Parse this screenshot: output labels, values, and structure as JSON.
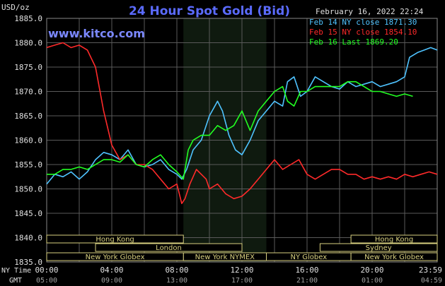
{
  "header": {
    "title": "24 Hour Spot Gold (Bid)",
    "date": "February 16, 2022 22:24",
    "watermark": "www.kitco.com",
    "y_unit": "USD/oz"
  },
  "legend": [
    {
      "label": "Feb 14 NY close 1871.30",
      "color": "#4fc3ff"
    },
    {
      "label": "Feb 15 NY close 1854.10",
      "color": "#ff2a2a"
    },
    {
      "label": "Feb 16 Last 1869.20",
      "color": "#22ff22"
    }
  ],
  "colors": {
    "background": "#000000",
    "grid": "#5a5a5a",
    "title": "#5b6bff",
    "watermark": "#7b88ff",
    "text": "#e0e0e0",
    "session_band": "#0f1a0f",
    "session_label": "#d8d080"
  },
  "time_axis": {
    "ny_time_label": "NY Time",
    "gmt_label": "GMT",
    "ny_ticks": [
      "00:00",
      "04:00",
      "08:00",
      "12:00",
      "16:00",
      "20:00",
      "23:59"
    ],
    "gmt_ticks": [
      "05:00",
      "09:00",
      "13:00",
      "17:00",
      "21:00",
      "01:00",
      "04:59"
    ]
  },
  "sessions": [
    {
      "label": "Hong Kong",
      "row": 0,
      "start": -1,
      "end": 8.4
    },
    {
      "label": "Hong Kong",
      "row": 0,
      "start": 18.7,
      "end": 24
    },
    {
      "label": "London",
      "row": 1,
      "start": 3.0,
      "end": 12.0
    },
    {
      "label": "Sydney",
      "row": 1,
      "start": 16.8,
      "end": 24
    },
    {
      "label": "New York NYMEX",
      "row": 2,
      "start": 8.4,
      "end": 13.5
    },
    {
      "label": "New York Globex",
      "row": 2,
      "start": -1,
      "end": 8.4
    },
    {
      "label": "NY Globex",
      "row": 2,
      "start": 13.5,
      "end": 18.7
    },
    {
      "label": "New York Globex",
      "row": 2,
      "start": 18.7,
      "end": 24
    }
  ],
  "chart_data": {
    "type": "line",
    "title": "24 Hour Spot Gold (Bid)",
    "xlabel": "NY Time",
    "ylabel": "USD/oz",
    "xlim": [
      0,
      24
    ],
    "ylim": [
      1835,
      1885
    ],
    "y_ticks": [
      "1835.0",
      "1840.0",
      "1845.0",
      "1850.0",
      "1855.0",
      "1860.0",
      "1865.0",
      "1870.0",
      "1875.0",
      "1880.0",
      "1885.0"
    ],
    "highlight_window": [
      8.4,
      13.5
    ],
    "series": [
      {
        "name": "Feb 14 NY close 1871.30",
        "color": "#4fc3ff",
        "points": [
          [
            0,
            1851
          ],
          [
            0.5,
            1853
          ],
          [
            1.0,
            1852.5
          ],
          [
            1.5,
            1853.5
          ],
          [
            2.0,
            1852
          ],
          [
            2.5,
            1853.5
          ],
          [
            3.0,
            1856
          ],
          [
            3.5,
            1857.5
          ],
          [
            4.0,
            1857
          ],
          [
            4.5,
            1856
          ],
          [
            5.0,
            1858
          ],
          [
            5.5,
            1855
          ],
          [
            6.0,
            1854.5
          ],
          [
            6.5,
            1855
          ],
          [
            7.0,
            1856
          ],
          [
            7.5,
            1854
          ],
          [
            8.0,
            1853
          ],
          [
            8.3,
            1852
          ],
          [
            8.6,
            1854
          ],
          [
            9.0,
            1858
          ],
          [
            9.5,
            1860
          ],
          [
            10.0,
            1865
          ],
          [
            10.5,
            1868
          ],
          [
            10.8,
            1866
          ],
          [
            11.2,
            1861
          ],
          [
            11.6,
            1858
          ],
          [
            12.0,
            1857
          ],
          [
            12.5,
            1860
          ],
          [
            13.0,
            1864
          ],
          [
            13.5,
            1866
          ],
          [
            14.0,
            1868
          ],
          [
            14.5,
            1867
          ],
          [
            14.8,
            1872
          ],
          [
            15.2,
            1873
          ],
          [
            15.6,
            1869
          ],
          [
            16.0,
            1870
          ],
          [
            16.5,
            1873
          ],
          [
            17.0,
            1872
          ],
          [
            17.5,
            1871
          ],
          [
            18.0,
            1870.5
          ],
          [
            18.5,
            1872
          ],
          [
            19.0,
            1871
          ],
          [
            19.5,
            1871.5
          ],
          [
            20.0,
            1872
          ],
          [
            20.5,
            1871
          ],
          [
            21.0,
            1871.5
          ],
          [
            21.5,
            1872
          ],
          [
            22.0,
            1873
          ],
          [
            22.3,
            1877
          ],
          [
            22.8,
            1878
          ],
          [
            23.2,
            1878.5
          ],
          [
            23.6,
            1879
          ],
          [
            24.0,
            1878.5
          ]
        ]
      },
      {
        "name": "Feb 15 NY close 1854.10",
        "color": "#ff2a2a",
        "points": [
          [
            0,
            1879
          ],
          [
            0.5,
            1879.5
          ],
          [
            1.0,
            1880
          ],
          [
            1.5,
            1879
          ],
          [
            2.0,
            1879.5
          ],
          [
            2.5,
            1878.5
          ],
          [
            3.0,
            1875
          ],
          [
            3.5,
            1866
          ],
          [
            4.0,
            1859
          ],
          [
            4.5,
            1856
          ],
          [
            5.0,
            1857
          ],
          [
            5.5,
            1855
          ],
          [
            6.0,
            1855
          ],
          [
            6.5,
            1854
          ],
          [
            7.0,
            1852
          ],
          [
            7.5,
            1850
          ],
          [
            8.0,
            1851
          ],
          [
            8.3,
            1847
          ],
          [
            8.5,
            1848
          ],
          [
            8.8,
            1851
          ],
          [
            9.2,
            1854
          ],
          [
            9.5,
            1853
          ],
          [
            9.8,
            1852
          ],
          [
            10.0,
            1850
          ],
          [
            10.5,
            1851
          ],
          [
            11.0,
            1849
          ],
          [
            11.5,
            1848
          ],
          [
            12.0,
            1848.5
          ],
          [
            12.5,
            1850
          ],
          [
            13.0,
            1852
          ],
          [
            13.5,
            1854
          ],
          [
            14.0,
            1856
          ],
          [
            14.5,
            1854
          ],
          [
            15.0,
            1855
          ],
          [
            15.5,
            1856
          ],
          [
            16.0,
            1853
          ],
          [
            16.5,
            1852
          ],
          [
            17.0,
            1853
          ],
          [
            17.5,
            1854
          ],
          [
            18.0,
            1854
          ],
          [
            18.5,
            1853
          ],
          [
            19.0,
            1853
          ],
          [
            19.5,
            1852
          ],
          [
            20.0,
            1852.5
          ],
          [
            20.5,
            1852
          ],
          [
            21.0,
            1852.5
          ],
          [
            21.5,
            1852
          ],
          [
            22.0,
            1853
          ],
          [
            22.5,
            1852.5
          ],
          [
            23.0,
            1853
          ],
          [
            23.5,
            1853.5
          ],
          [
            24.0,
            1853
          ]
        ]
      },
      {
        "name": "Feb 16 Last 1869.20",
        "color": "#22ff22",
        "points": [
          [
            0,
            1853
          ],
          [
            0.5,
            1853
          ],
          [
            1.0,
            1854
          ],
          [
            1.5,
            1854
          ],
          [
            2.0,
            1854.5
          ],
          [
            2.5,
            1854
          ],
          [
            3.0,
            1855
          ],
          [
            3.5,
            1856
          ],
          [
            4.0,
            1856
          ],
          [
            4.5,
            1855.5
          ],
          [
            5.0,
            1857
          ],
          [
            5.5,
            1855
          ],
          [
            6.0,
            1854.5
          ],
          [
            6.5,
            1856
          ],
          [
            7.0,
            1857
          ],
          [
            7.5,
            1855
          ],
          [
            8.0,
            1853.5
          ],
          [
            8.4,
            1852
          ],
          [
            8.7,
            1858
          ],
          [
            9.0,
            1860
          ],
          [
            9.5,
            1861
          ],
          [
            10.0,
            1861
          ],
          [
            10.5,
            1863
          ],
          [
            11.0,
            1862
          ],
          [
            11.5,
            1863
          ],
          [
            12.0,
            1866
          ],
          [
            12.5,
            1862
          ],
          [
            13.0,
            1866
          ],
          [
            13.5,
            1868
          ],
          [
            14.0,
            1870
          ],
          [
            14.5,
            1871
          ],
          [
            14.8,
            1868
          ],
          [
            15.2,
            1867
          ],
          [
            15.6,
            1870
          ],
          [
            16.0,
            1870
          ],
          [
            16.5,
            1871
          ],
          [
            17.0,
            1871
          ],
          [
            17.5,
            1871
          ],
          [
            18.0,
            1871
          ],
          [
            18.5,
            1872
          ],
          [
            19.0,
            1872
          ],
          [
            19.5,
            1871
          ],
          [
            20.0,
            1870
          ],
          [
            20.5,
            1870
          ],
          [
            21.0,
            1869.5
          ],
          [
            21.5,
            1869
          ],
          [
            22.0,
            1869.5
          ],
          [
            22.5,
            1869
          ]
        ]
      }
    ]
  }
}
